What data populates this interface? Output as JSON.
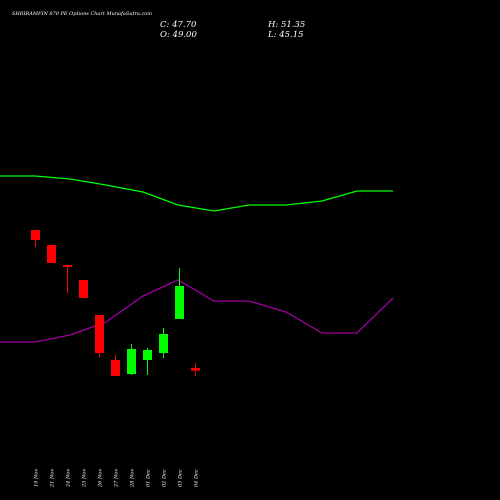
{
  "chart_data": {
    "type": "candlestick",
    "title": "SHRIRAMFIN 870 PE Options Chart MunafaSutra.com",
    "ohlc_labels": {
      "close": "C: 47.70",
      "open": "O: 49.00",
      "high": "H: 51.35",
      "low": "L: 45.15"
    },
    "categories": [
      "19 Nov",
      "21 Nov",
      "24 Nov",
      "25 Nov",
      "26 Nov",
      "27 Nov",
      "28 Nov",
      "01 Dec",
      "02 Dec",
      "03 Dec",
      "04 Dec"
    ],
    "candles": [
      {
        "o": 118.0,
        "h": 118.0,
        "c": 113.0,
        "l": 109.5
      },
      {
        "o": 110.5,
        "h": 110.5,
        "c": 101.5,
        "l": 101.5
      },
      {
        "o": 100.5,
        "h": 100.5,
        "c": 99.5,
        "l": 86.5
      },
      {
        "o": 93.0,
        "h": 93.0,
        "c": 84.0,
        "l": 84.0
      },
      {
        "o": 75.5,
        "h": 75.5,
        "c": 56.5,
        "l": 54.5
      },
      {
        "o": 53.0,
        "h": 55.5,
        "c": 45.0,
        "l": 45.0
      },
      {
        "o": 46.0,
        "h": 61.0,
        "c": 58.5,
        "l": 45.5
      },
      {
        "o": 53.0,
        "h": 59.0,
        "c": 58.0,
        "l": 45.5
      },
      {
        "o": 56.5,
        "h": 69.0,
        "c": 66.0,
        "l": 54.0
      },
      {
        "o": 73.5,
        "h": 99.0,
        "c": 90.0,
        "l": 73.5
      },
      {
        "o": 49.0,
        "h": 51.35,
        "c": 47.7,
        "l": 45.15
      }
    ],
    "upper_band": [
      145.0,
      145.0,
      143.5,
      140.5,
      137.0,
      130.5,
      127.5,
      130.5,
      130.5,
      132.5,
      137.5,
      137.5
    ],
    "lower_band": [
      62.0,
      62.0,
      65.5,
      72.0,
      85.0,
      93.0,
      82.5,
      82.5,
      77.0,
      66.5,
      66.5,
      84.0
    ],
    "up_color": "#00ff00",
    "down_color": "#ff0000",
    "upper_band_color": "#00ff00",
    "lower_band_color": "#a000a0",
    "background": "#000000"
  }
}
